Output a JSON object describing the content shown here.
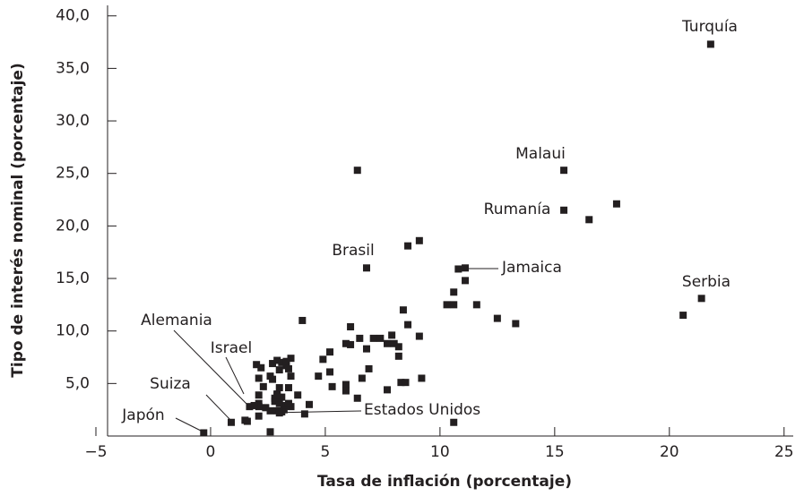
{
  "chart_data": {
    "type": "scatter",
    "x_label": "Tasa de inflación (porcentaje)",
    "y_label": "Tipo de interés nominal (porcentaje)",
    "color": "#231f20",
    "xlim": [
      -5,
      25.4
    ],
    "ylim": [
      0,
      41
    ],
    "xticks": [
      {
        "value": -5,
        "label": "−5"
      },
      0,
      5,
      10,
      15,
      20,
      25
    ],
    "yticks": [
      {
        "value": 5,
        "label": "5,0"
      },
      {
        "value": 10,
        "label": "10,0"
      },
      {
        "value": 15,
        "label": "15,0"
      },
      {
        "value": 20,
        "label": "20,0"
      },
      {
        "value": 25,
        "label": "25,0"
      },
      {
        "value": 30,
        "label": "30,0"
      },
      {
        "value": 35,
        "label": "35,0"
      },
      {
        "value": 40,
        "label": "40,0"
      }
    ],
    "annotations": [
      "Turquía",
      "Malaui",
      "Rumanía",
      "Brasil",
      "Jamaica",
      "Serbia",
      "Alemania",
      "Israel",
      "Suiza",
      "Japón",
      "Estados Unidos"
    ],
    "x": [
      21.8,
      15.4,
      15.4,
      16.5,
      17.7,
      21.4,
      20.6,
      6.4,
      6.8,
      8.6,
      9.1,
      11.1,
      10.8,
      11.1,
      10.6,
      10.3,
      10.6,
      11.6,
      12.5,
      13.3,
      8.4,
      8.6,
      9.1,
      9.2,
      8.3,
      8.5,
      7.7,
      10.6,
      4.0,
      6.1,
      5.9,
      6.1,
      6.5,
      6.8,
      7.1,
      7.4,
      7.7,
      7.9,
      8.0,
      8.2,
      6.9,
      6.6,
      8.2,
      5.2,
      4.9,
      5.2,
      4.7,
      5.3,
      5.9,
      5.9,
      6.4,
      4.3,
      3.8,
      2.0,
      2.2,
      2.1,
      2.3,
      2.1,
      2.1,
      2.7,
      2.9,
      3.0,
      3.1,
      3.3,
      2.6,
      2.7,
      3.0,
      3.4,
      3.1,
      2.9,
      2.8,
      3.0,
      3.2,
      2.9,
      3.1,
      3.5,
      4.1,
      3.3,
      2.8,
      2.4,
      2.6,
      1.7,
      1.5,
      2.1,
      2.1,
      2.6,
      1.9,
      3.4,
      3.5,
      3.3,
      3.5,
      3.4,
      3.0,
      2.9,
      0.9,
      1.6,
      -0.3
    ],
    "values": [
      37.3,
      25.3,
      21.5,
      20.6,
      22.1,
      13.1,
      11.5,
      25.3,
      16.0,
      18.1,
      18.6,
      16.0,
      15.9,
      14.8,
      13.7,
      12.5,
      12.5,
      12.5,
      11.2,
      10.7,
      12.0,
      10.6,
      9.5,
      5.5,
      5.1,
      5.1,
      4.4,
      1.3,
      11.0,
      10.4,
      8.8,
      8.7,
      9.3,
      8.3,
      9.3,
      9.3,
      8.8,
      9.6,
      8.8,
      8.5,
      6.4,
      5.5,
      7.6,
      8.0,
      7.3,
      6.1,
      5.7,
      4.7,
      4.9,
      4.3,
      3.6,
      3.0,
      3.9,
      6.8,
      6.5,
      5.5,
      4.7,
      3.9,
      3.1,
      6.9,
      7.2,
      6.3,
      7.0,
      6.7,
      5.7,
      5.4,
      4.6,
      4.6,
      3.7,
      4.0,
      3.3,
      3.1,
      2.5,
      2.4,
      2.3,
      2.8,
      2.1,
      2.9,
      3.6,
      2.7,
      2.4,
      2.8,
      1.5,
      1.9,
      2.8,
      0.4,
      2.9,
      6.4,
      7.4,
      7.1,
      5.7,
      3.1,
      2.2,
      3.9,
      1.3,
      1.4,
      0.3
    ]
  }
}
